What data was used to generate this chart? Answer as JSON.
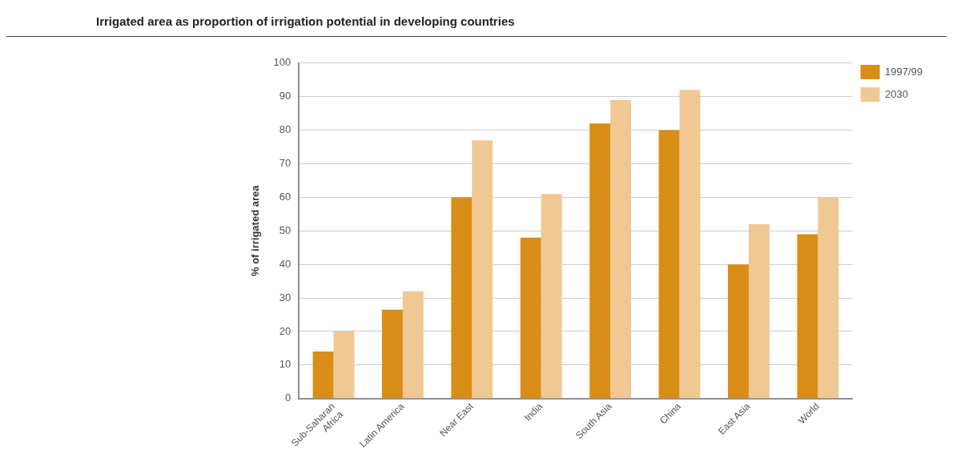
{
  "chart_data": {
    "type": "bar",
    "title": "Irrigated area as proportion of irrigation potential in developing countries",
    "ylabel": "% of irrigated area",
    "categories": [
      "Sub-Saharan\nAfrica",
      "Latin America",
      "Near East",
      "India",
      "South Asia",
      "China",
      "East Asia",
      "World"
    ],
    "series": [
      {
        "name": "1997/99",
        "color": "#d98e17",
        "values": [
          14,
          26.5,
          60,
          48,
          82,
          80,
          40,
          49
        ]
      },
      {
        "name": "2030",
        "color": "#f0c893",
        "values": [
          20,
          32,
          77,
          61,
          89,
          92,
          52,
          60
        ]
      }
    ],
    "ylim": [
      0,
      100
    ],
    "yticks": [
      0,
      10,
      20,
      30,
      40,
      50,
      60,
      70,
      80,
      90,
      100
    ],
    "grid": "y",
    "legend": "top right"
  }
}
